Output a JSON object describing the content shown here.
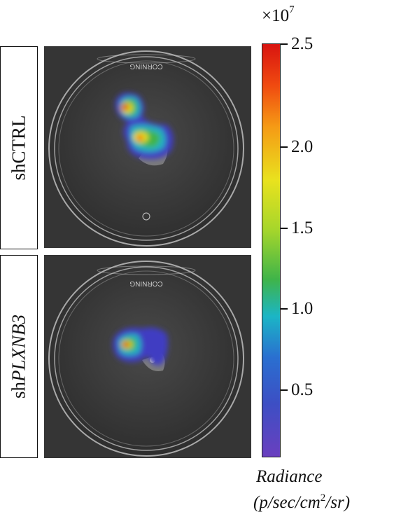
{
  "labels": {
    "top_group": "shCTRL",
    "bottom_prefix": "sh",
    "bottom_gene": "PLXNB3"
  },
  "dish_text": "CORNING",
  "colorbar": {
    "multiplier_base": "×10",
    "multiplier_exp": "7",
    "ticks": [
      "2.5",
      "2.0",
      "1.5",
      "1.0",
      "0.5"
    ],
    "title": "Radiance",
    "unit_open": "(p/sec/cm",
    "unit_sup": "2",
    "unit_close": "/sr)",
    "colors_top_to_bottom": [
      "#d81410",
      "#f59a15",
      "#e9e21e",
      "#3fb449",
      "#1bb5c6",
      "#2a6fd0",
      "#6a3fbf"
    ]
  }
}
